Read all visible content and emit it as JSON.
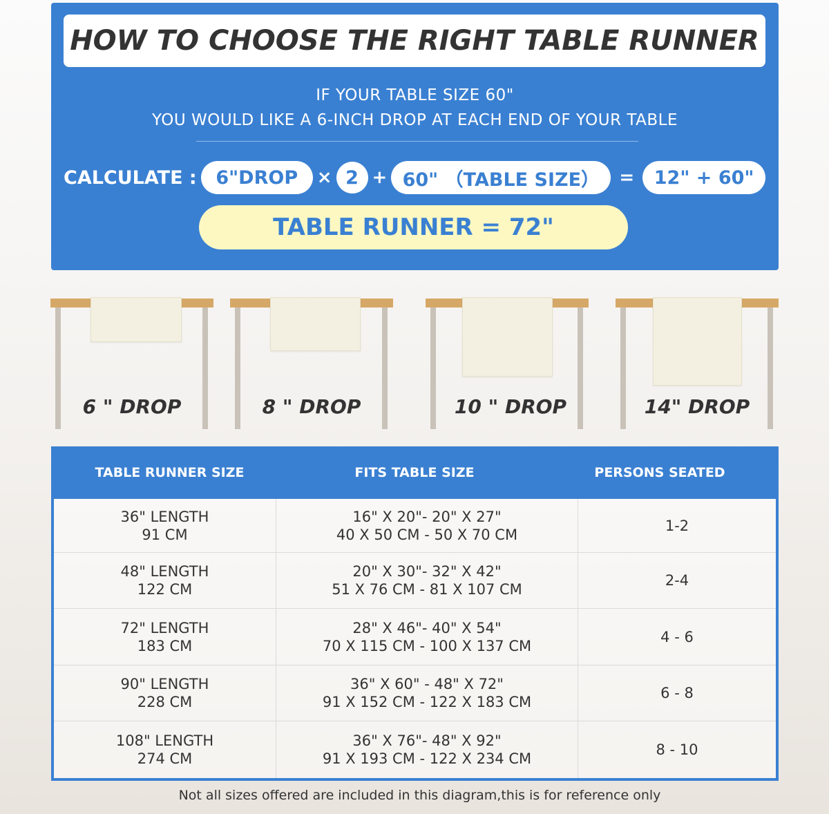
{
  "header": {
    "title": "HOW TO CHOOSE THE RIGHT TABLE RUNNER",
    "line1": "IF YOUR TABLE SIZE 60\"",
    "line2": "YOU WOULD LIKE A 6-INCH DROP AT EACH END OF YOUR TABLE"
  },
  "calc": {
    "label": "CALCULATE :",
    "drop": "6\"DROP",
    "times": "×",
    "two": "2",
    "plus": "+",
    "table": "60\" （TABLE SIZE）",
    "equals": "=",
    "sum": "12\" + 60\"",
    "result": "TABLE RUNNER = 72\""
  },
  "drops": [
    {
      "label": "6 \" DROP"
    },
    {
      "label": "8 \" DROP"
    },
    {
      "label": "10 \" DROP"
    },
    {
      "label": "14\" DROP"
    }
  ],
  "table": {
    "headers": [
      "TABLE RUNNER SIZE",
      "FITS TABLE SIZE",
      "PERSONS SEATED"
    ],
    "rows": [
      {
        "len": "36\" LENGTH",
        "cm": "91 CM",
        "fit1": "16\" X 20\"- 20\" X 27\"",
        "fit2": "40 X 50 CM - 50 X 70 CM",
        "persons": "1-2"
      },
      {
        "len": "48\" LENGTH",
        "cm": "122 CM",
        "fit1": "20\" X 30\"- 32\" X 42\"",
        "fit2": "51 X 76 CM - 81 X 107 CM",
        "persons": "2-4"
      },
      {
        "len": "72\" LENGTH",
        "cm": "183 CM",
        "fit1": "28\" X 46\"- 40\" X 54\"",
        "fit2": "70 X 115 CM - 100 X 137 CM",
        "persons": "4 - 6"
      },
      {
        "len": "90\" LENGTH",
        "cm": "228 CM",
        "fit1": "36\" X 60\" - 48\" X 72\"",
        "fit2": "91 X 152 CM - 122 X 183 CM",
        "persons": "6 - 8"
      },
      {
        "len": "108\" LENGTH",
        "cm": "274 CM",
        "fit1": "36\" X 76\"- 48\" X 92\"",
        "fit2": "91 X 193 CM - 122 X 234 CM",
        "persons": "8 - 10"
      }
    ]
  },
  "footnote": "Not all sizes offered are included in this diagram,this is for reference only",
  "colors": {
    "blue": "#3a80d2",
    "yellow": "#fdf8c2",
    "wood": "#d6a867"
  }
}
